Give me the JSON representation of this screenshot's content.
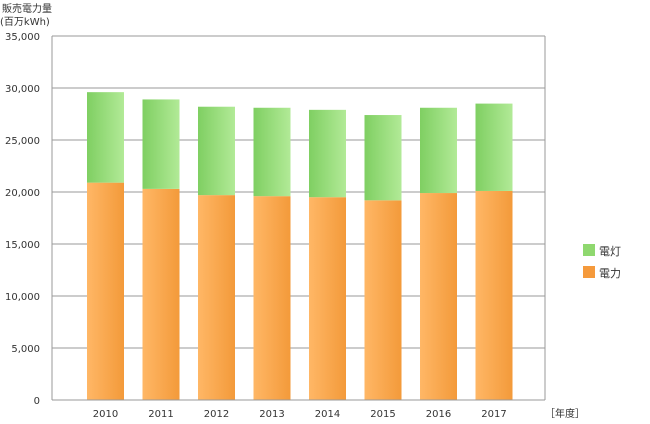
{
  "chart_data": {
    "type": "bar",
    "stacked": true,
    "ylabel_line1": "販売電力量",
    "ylabel_line2": "(百万kWh)",
    "xlabel": "［年度］",
    "categories": [
      "2010",
      "2011",
      "2012",
      "2013",
      "2014",
      "2015",
      "2016",
      "2017"
    ],
    "series": [
      {
        "name": "電力",
        "color": "#f59a3c",
        "values": [
          20900,
          20300,
          19700,
          19600,
          19500,
          19200,
          19900,
          20100
        ]
      },
      {
        "name": "電灯",
        "color": "#8fd86f",
        "values": [
          8700,
          8600,
          8500,
          8500,
          8400,
          8200,
          8200,
          8400
        ]
      }
    ],
    "yticks": [
      "0",
      "5,000",
      "10,000",
      "15,000",
      "20,000",
      "25,000",
      "30,000",
      "35,000"
    ],
    "ylim": [
      0,
      35000
    ],
    "grid": true,
    "legend": "right"
  }
}
